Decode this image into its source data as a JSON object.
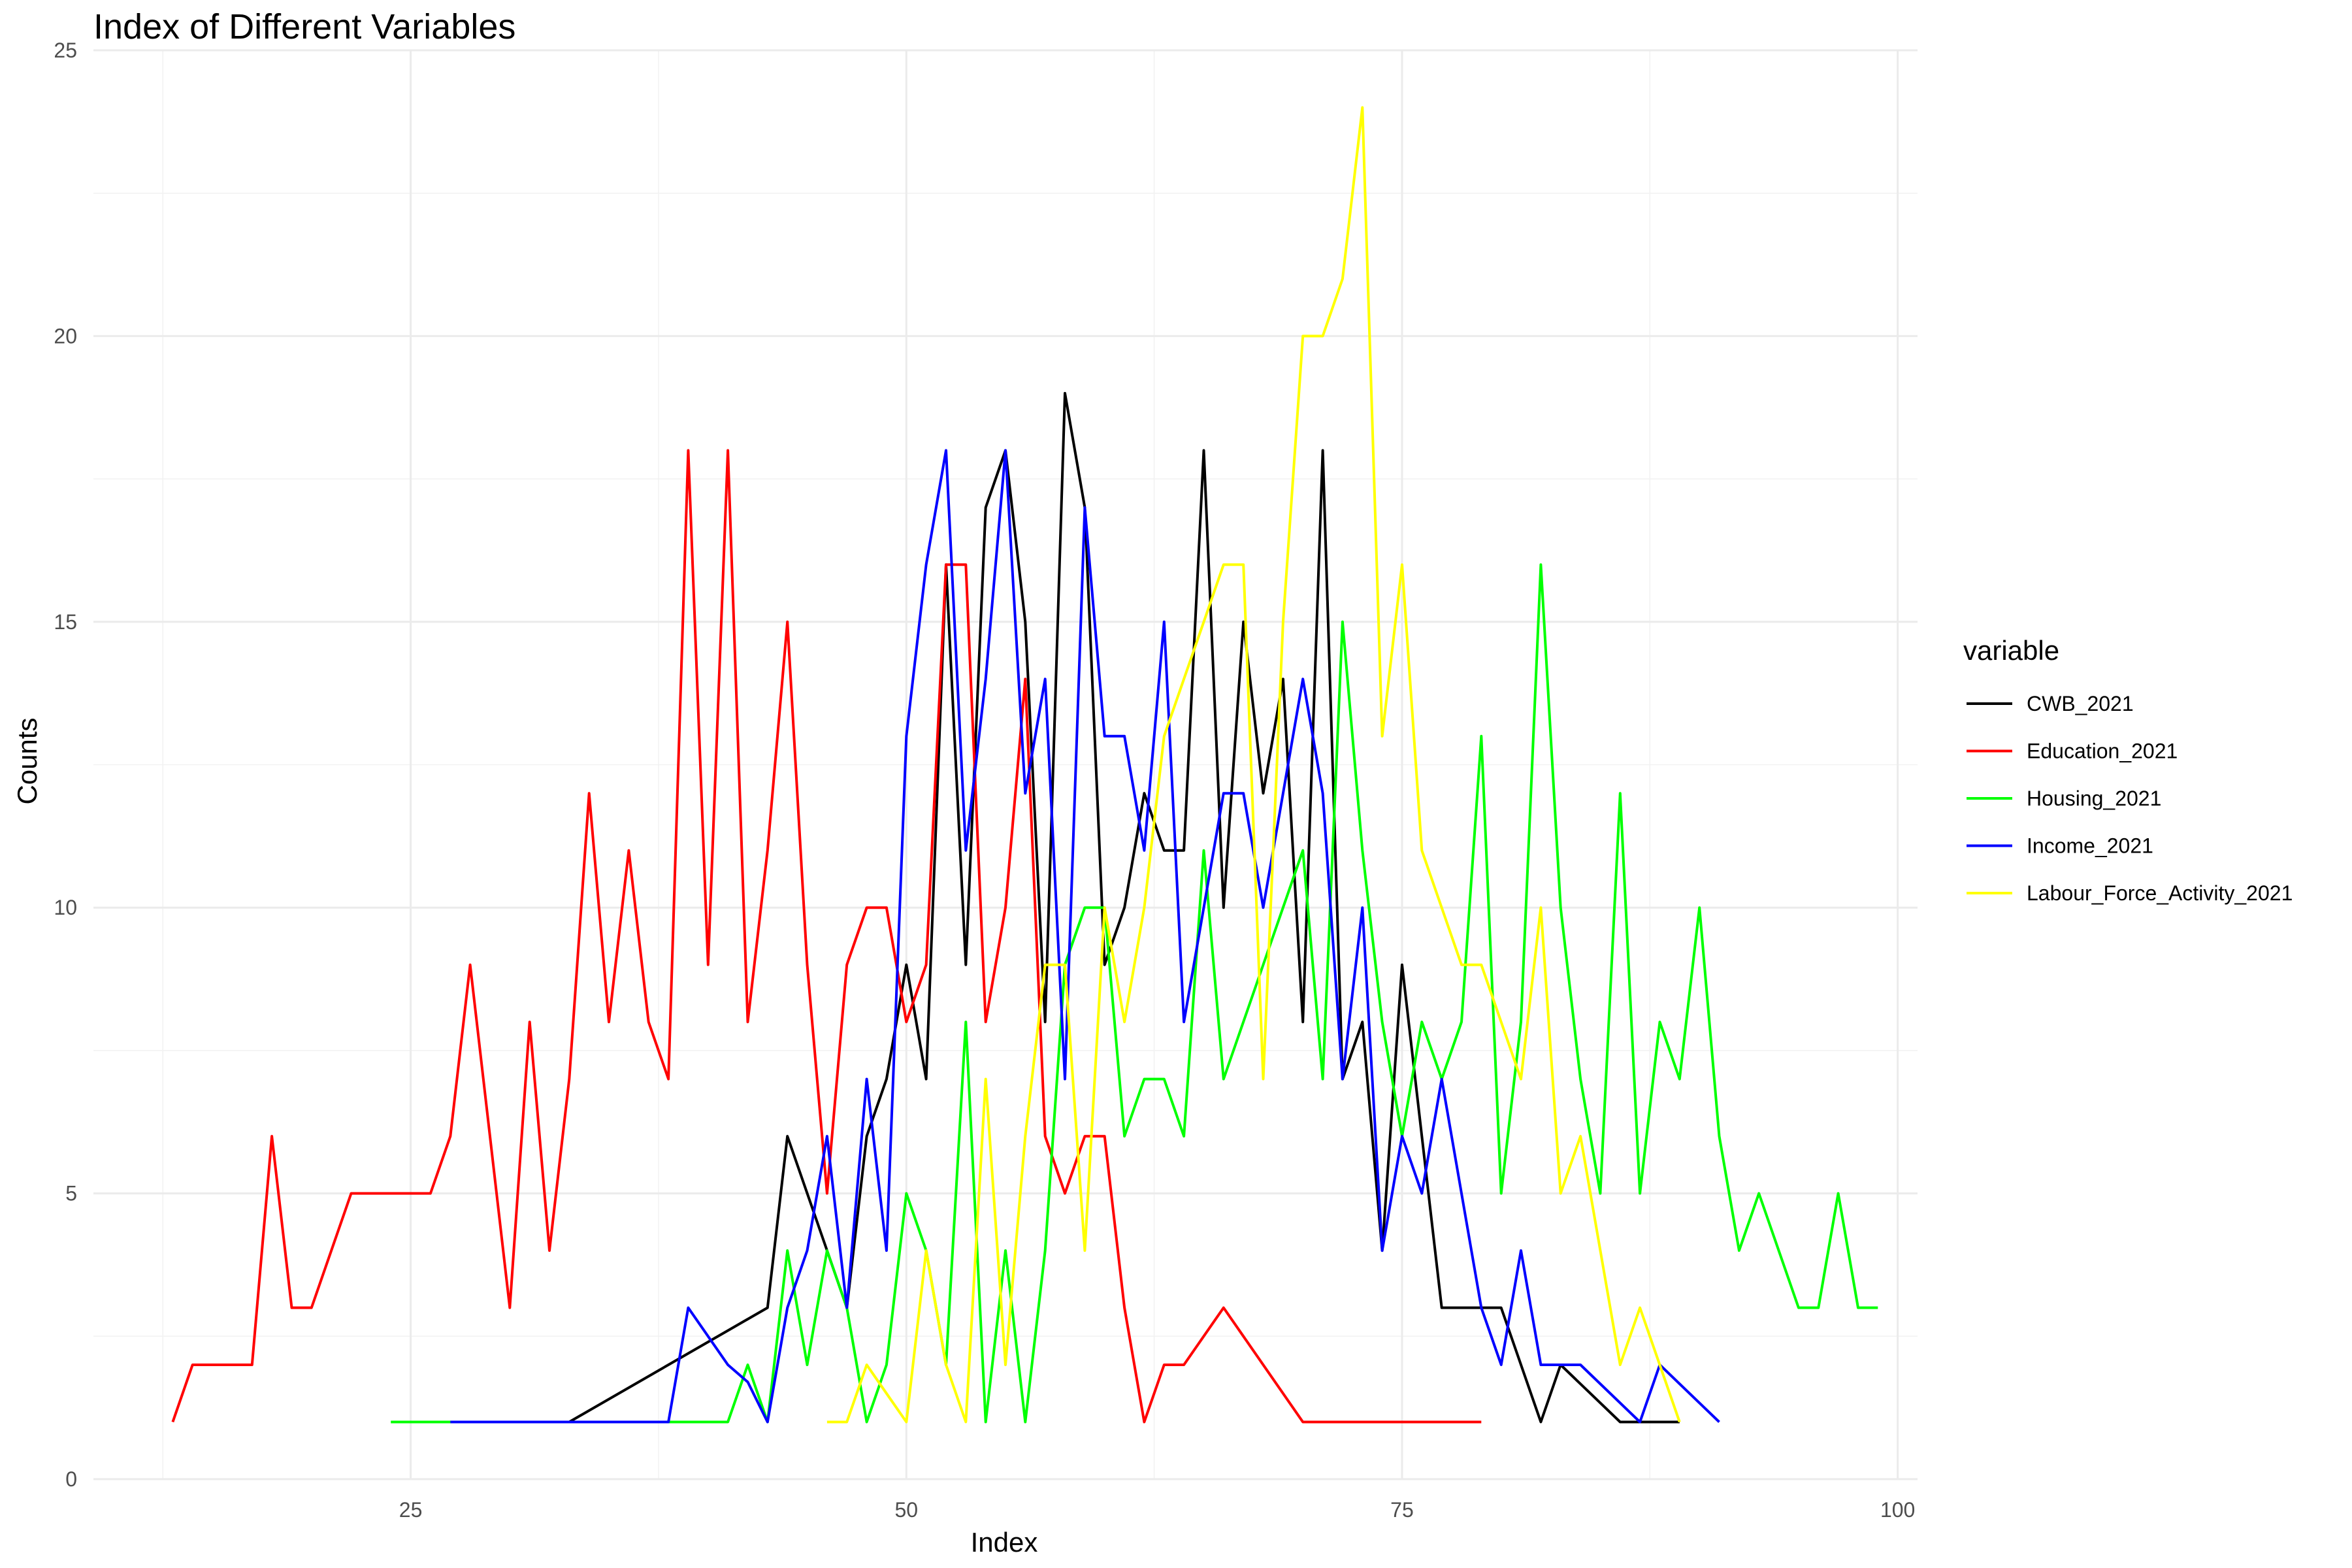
{
  "chart_data": {
    "type": "line",
    "title": "Index of Different Variables",
    "xlabel": "Index",
    "ylabel": "Counts",
    "xlim": [
      9,
      101
    ],
    "ylim": [
      0,
      25
    ],
    "x_ticks": [
      25,
      50,
      75,
      100
    ],
    "y_ticks": [
      0,
      5,
      10,
      15,
      20,
      25
    ],
    "grid": true,
    "legend": {
      "title": "variable",
      "position": "right"
    },
    "series": [
      {
        "name": "CWB_2021",
        "color": "#000000",
        "points": [
          [
            33,
            1
          ],
          [
            43,
            3
          ],
          [
            44,
            6
          ],
          [
            46,
            4
          ],
          [
            47,
            3
          ],
          [
            48,
            6
          ],
          [
            49,
            7
          ],
          [
            50,
            9
          ],
          [
            51,
            7
          ],
          [
            52,
            16
          ],
          [
            53,
            9
          ],
          [
            54,
            17
          ],
          [
            55,
            18
          ],
          [
            56,
            15
          ],
          [
            57,
            8
          ],
          [
            58,
            19
          ],
          [
            59,
            17
          ],
          [
            60,
            9
          ],
          [
            61,
            10
          ],
          [
            62,
            12
          ],
          [
            63,
            11
          ],
          [
            64,
            11
          ],
          [
            65,
            18
          ],
          [
            66,
            10
          ],
          [
            67,
            15
          ],
          [
            68,
            12
          ],
          [
            69,
            14
          ],
          [
            70,
            8
          ],
          [
            71,
            18
          ],
          [
            72,
            7
          ],
          [
            73,
            8
          ],
          [
            74,
            4
          ],
          [
            75,
            9
          ],
          [
            76,
            6
          ],
          [
            77,
            3
          ],
          [
            79,
            3
          ],
          [
            80,
            3
          ],
          [
            82,
            1
          ],
          [
            83,
            2
          ],
          [
            86,
            1
          ],
          [
            89,
            1
          ]
        ]
      },
      {
        "name": "Education_2021",
        "color": "#ff0000",
        "points": [
          [
            13,
            1
          ],
          [
            14,
            2
          ],
          [
            17,
            2
          ],
          [
            18,
            6
          ],
          [
            19,
            3
          ],
          [
            20,
            3
          ],
          [
            22,
            5
          ],
          [
            26,
            5
          ],
          [
            27,
            6
          ],
          [
            28,
            9
          ],
          [
            30,
            3
          ],
          [
            31,
            8
          ],
          [
            32,
            4
          ],
          [
            33,
            7
          ],
          [
            34,
            12
          ],
          [
            35,
            8
          ],
          [
            36,
            11
          ],
          [
            37,
            8
          ],
          [
            38,
            7
          ],
          [
            39,
            18
          ],
          [
            40,
            9
          ],
          [
            41,
            18
          ],
          [
            42,
            8
          ],
          [
            43,
            11
          ],
          [
            44,
            15
          ],
          [
            45,
            9
          ],
          [
            46,
            5
          ],
          [
            47,
            9
          ],
          [
            48,
            10
          ],
          [
            49,
            10
          ],
          [
            50,
            8
          ],
          [
            51,
            9
          ],
          [
            52,
            16
          ],
          [
            53,
            16
          ],
          [
            54,
            8
          ],
          [
            55,
            10
          ],
          [
            56,
            14
          ],
          [
            57,
            6
          ],
          [
            58,
            5
          ],
          [
            59,
            6
          ],
          [
            60,
            6
          ],
          [
            61,
            3
          ],
          [
            62,
            1
          ],
          [
            63,
            2
          ],
          [
            64,
            2
          ],
          [
            66,
            3
          ],
          [
            70,
            1
          ],
          [
            79,
            1
          ]
        ]
      },
      {
        "name": "Housing_2021",
        "color": "#00ff00",
        "points": [
          [
            24,
            1
          ],
          [
            41,
            1
          ],
          [
            42,
            2
          ],
          [
            43,
            1
          ],
          [
            44,
            4
          ],
          [
            45,
            2
          ],
          [
            46,
            4
          ],
          [
            47,
            3
          ],
          [
            48,
            1
          ],
          [
            49,
            2
          ],
          [
            50,
            5
          ],
          [
            51,
            4
          ],
          [
            52,
            2
          ],
          [
            53,
            8
          ],
          [
            54,
            1
          ],
          [
            55,
            4
          ],
          [
            56,
            1
          ],
          [
            57,
            4
          ],
          [
            58,
            9
          ],
          [
            59,
            10
          ],
          [
            60,
            10
          ],
          [
            61,
            6
          ],
          [
            62,
            7
          ],
          [
            63,
            7
          ],
          [
            64,
            6
          ],
          [
            65,
            11
          ],
          [
            66,
            7
          ],
          [
            70,
            11
          ],
          [
            71,
            7
          ],
          [
            72,
            15
          ],
          [
            73,
            11
          ],
          [
            74,
            8
          ],
          [
            75,
            6
          ],
          [
            76,
            8
          ],
          [
            77,
            7
          ],
          [
            78,
            8
          ],
          [
            79,
            13
          ],
          [
            80,
            5
          ],
          [
            81,
            8
          ],
          [
            82,
            16
          ],
          [
            83,
            10
          ],
          [
            84,
            7
          ],
          [
            85,
            5
          ],
          [
            86,
            12
          ],
          [
            87,
            5
          ],
          [
            88,
            8
          ],
          [
            89,
            7
          ],
          [
            90,
            10
          ],
          [
            91,
            6
          ],
          [
            92,
            4
          ],
          [
            93,
            5
          ],
          [
            95,
            3
          ],
          [
            96,
            3
          ],
          [
            97,
            5
          ],
          [
            98,
            3
          ],
          [
            99,
            3
          ]
        ]
      },
      {
        "name": "Income_2021",
        "color": "#0000ff",
        "points": [
          [
            27,
            1
          ],
          [
            38,
            1
          ],
          [
            39,
            3
          ],
          [
            41,
            2
          ],
          [
            42,
            1.7
          ],
          [
            43,
            1
          ],
          [
            44,
            3
          ],
          [
            45,
            4
          ],
          [
            46,
            6
          ],
          [
            47,
            3
          ],
          [
            48,
            7
          ],
          [
            49,
            4
          ],
          [
            50,
            13
          ],
          [
            51,
            16
          ],
          [
            52,
            18
          ],
          [
            53,
            11
          ],
          [
            54,
            14
          ],
          [
            55,
            18
          ],
          [
            56,
            12
          ],
          [
            57,
            14
          ],
          [
            58,
            7
          ],
          [
            59,
            17
          ],
          [
            60,
            13
          ],
          [
            61,
            13
          ],
          [
            62,
            11
          ],
          [
            63,
            15
          ],
          [
            64,
            8
          ],
          [
            65,
            10
          ],
          [
            66,
            12
          ],
          [
            67,
            12
          ],
          [
            68,
            10
          ],
          [
            69,
            12
          ],
          [
            70,
            14
          ],
          [
            71,
            12
          ],
          [
            72,
            7
          ],
          [
            73,
            10
          ],
          [
            74,
            4
          ],
          [
            75,
            6
          ],
          [
            76,
            5
          ],
          [
            77,
            7
          ],
          [
            79,
            3
          ],
          [
            80,
            2
          ],
          [
            81,
            4
          ],
          [
            82,
            2
          ],
          [
            84,
            2
          ],
          [
            87,
            1
          ],
          [
            88,
            2
          ],
          [
            91,
            1
          ]
        ]
      },
      {
        "name": "Labour_Force_Activity_2021",
        "color": "#ffff00",
        "points": [
          [
            46,
            1
          ],
          [
            47,
            1
          ],
          [
            48,
            2
          ],
          [
            49,
            1.5
          ],
          [
            50,
            1
          ],
          [
            51,
            4
          ],
          [
            52,
            2
          ],
          [
            53,
            1
          ],
          [
            54,
            7
          ],
          [
            55,
            2
          ],
          [
            56,
            6
          ],
          [
            57,
            9
          ],
          [
            58,
            9
          ],
          [
            59,
            4
          ],
          [
            60,
            10
          ],
          [
            61,
            8
          ],
          [
            62,
            10
          ],
          [
            63,
            13
          ],
          [
            64,
            14
          ],
          [
            65,
            15
          ],
          [
            66,
            16
          ],
          [
            67,
            16
          ],
          [
            68,
            7
          ],
          [
            69,
            15
          ],
          [
            70,
            20
          ],
          [
            71,
            20
          ],
          [
            72,
            21
          ],
          [
            73,
            24
          ],
          [
            74,
            13
          ],
          [
            75,
            16
          ],
          [
            76,
            11
          ],
          [
            78,
            9
          ],
          [
            79,
            9
          ],
          [
            81,
            7
          ],
          [
            82,
            10
          ],
          [
            83,
            5
          ],
          [
            84,
            6
          ],
          [
            86,
            2
          ],
          [
            87,
            3
          ],
          [
            89,
            1
          ]
        ]
      }
    ]
  }
}
